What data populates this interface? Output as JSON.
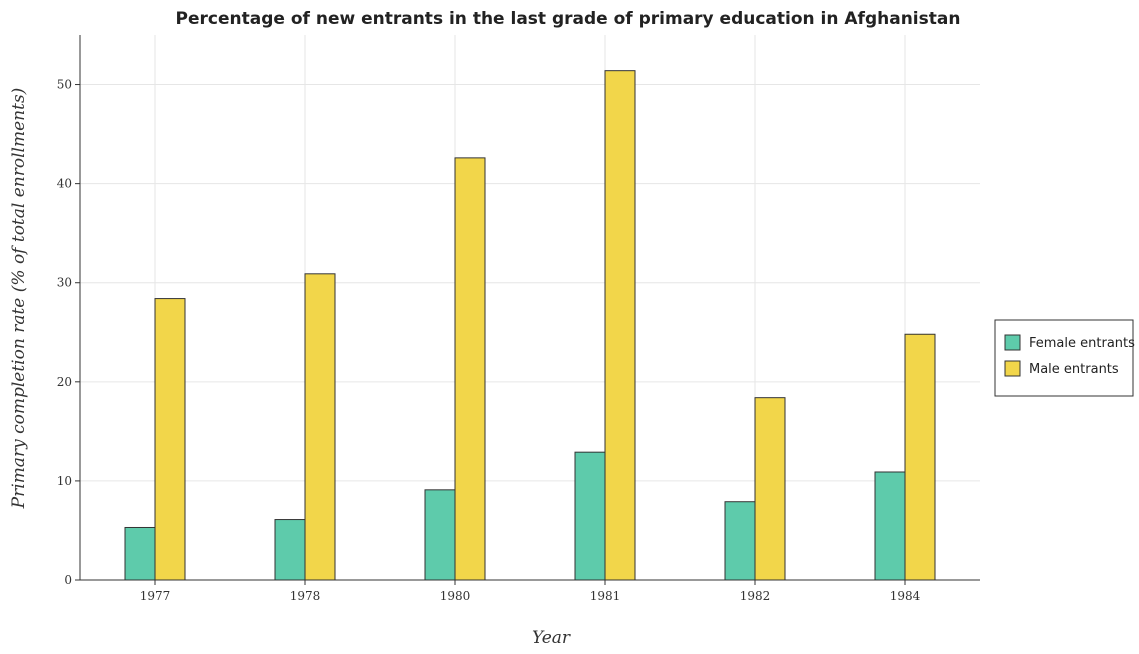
{
  "chart_data": {
    "type": "bar",
    "title": "Percentage of new entrants in the last grade of primary education in Afghanistan",
    "xlabel": "Year",
    "ylabel": "Primary completion rate (% of total enrollments)",
    "categories": [
      "1977",
      "1978",
      "1980",
      "1981",
      "1982",
      "1984"
    ],
    "series": [
      {
        "name": "Female entrants",
        "color": "#5ecbab",
        "values": [
          5.3,
          6.1,
          9.1,
          12.9,
          7.9,
          10.9
        ]
      },
      {
        "name": "Male entrants",
        "color": "#f2d64a",
        "values": [
          28.4,
          30.9,
          42.6,
          51.4,
          18.4,
          24.8
        ]
      }
    ],
    "ylim": [
      0,
      55
    ],
    "yticks": [
      0,
      10,
      20,
      30,
      40,
      50
    ],
    "grid": true,
    "legend_position": "right"
  }
}
